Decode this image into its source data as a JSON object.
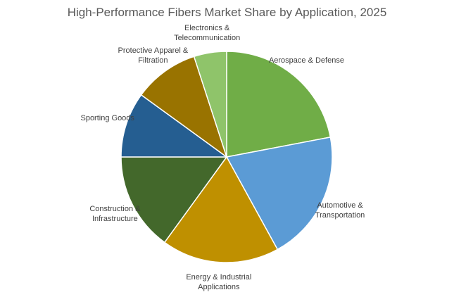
{
  "chart_data": {
    "type": "pie",
    "title": "High-Performance Fibers Market Share by Application, 2025",
    "categories": [
      "Aerospace & Defense",
      "Automotive & Transportation",
      "Energy & Industrial Applications",
      "Construction & Infrastructure",
      "Sporting Goods",
      "Protective Apparel & Filtration",
      "Electronics & Telecommunication"
    ],
    "values": [
      22,
      20,
      18,
      15,
      10,
      10,
      5
    ],
    "colors": [
      "#70ad47",
      "#5b9bd5",
      "#bf9000",
      "#43682b",
      "#255e91",
      "#997300",
      "#8fc46a"
    ]
  }
}
